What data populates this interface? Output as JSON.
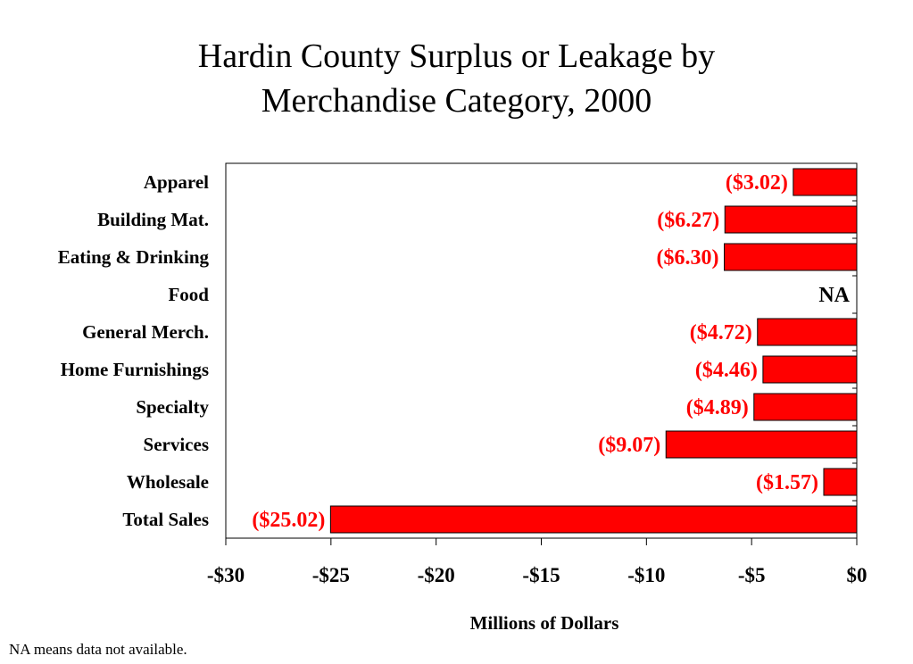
{
  "footnote": "NA means data not available.",
  "chart_data": {
    "type": "bar",
    "orientation": "horizontal",
    "title": "Hardin County Surplus or Leakage by\nMerchandise Category, 2000",
    "xlabel": "Millions of Dollars",
    "ylabel": "",
    "xlim": [
      -30,
      0
    ],
    "x_ticks": [
      -30,
      -25,
      -20,
      -15,
      -10,
      -5,
      0
    ],
    "x_tick_labels": [
      "-$30",
      "-$25",
      "-$20",
      "-$15",
      "-$10",
      "-$5",
      "$0"
    ],
    "grid": false,
    "bar_color": "#ff0000",
    "label_color": "#ff0000",
    "categories": [
      "Apparel",
      "Building Mat.",
      "Eating & Drinking",
      "Food",
      "General Merch.",
      "Home Furnishings",
      "Specialty",
      "Services",
      "Wholesale",
      "Total Sales"
    ],
    "values": [
      -3.02,
      -6.27,
      -6.3,
      null,
      -4.72,
      -4.46,
      -4.89,
      -9.07,
      -1.57,
      -25.02
    ],
    "data_labels": [
      "($3.02)",
      "($6.27)",
      "($6.30)",
      "NA",
      "($4.72)",
      "($4.46)",
      "($4.89)",
      "($9.07)",
      "($1.57)",
      "($25.02)"
    ]
  }
}
